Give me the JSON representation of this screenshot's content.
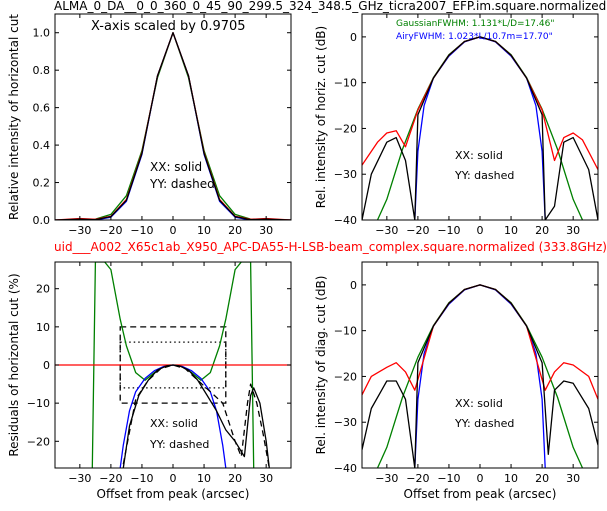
{
  "figure": {
    "suptitle": "ALMA_0_DA__0_0_360_0_45_90_299.5_324_348.5_GHz_ticra2007_EFP.im.square.normalized",
    "subtitle": "uid___A002_X65c1ab_X950_APC-DA55-H-LSB-beam_complex.square.normalized (333.8GHz)",
    "subtitle_color": "#ff0000"
  },
  "chart_data": [
    {
      "id": "p1",
      "type": "line",
      "ylabel": "Relative intensity of horizontal cut",
      "xlabel": "",
      "xlim": [
        -38,
        38
      ],
      "ylim": [
        0,
        1.1
      ],
      "xticks": [
        -30,
        -20,
        -10,
        0,
        10,
        20,
        30
      ],
      "yticks": [
        0.0,
        0.2,
        0.4,
        0.6,
        0.8,
        1.0
      ],
      "ytick_labels": [
        "0.0",
        "0.2",
        "0.4",
        "0.6",
        "0.8",
        "1.0"
      ],
      "annotations": [
        "X-axis scaled by 0.9705",
        "XX: solid",
        "YY: dashed"
      ],
      "series": [
        {
          "color": "#008000",
          "style": "solid",
          "x": [
            -38,
            -30,
            -25,
            -20,
            -15,
            -10,
            -5,
            0,
            5,
            10,
            15,
            20,
            25,
            30,
            38
          ],
          "y": [
            0.0,
            0.0,
            0.005,
            0.03,
            0.13,
            0.37,
            0.76,
            1.0,
            0.76,
            0.37,
            0.13,
            0.03,
            0.005,
            0.0,
            0.0
          ]
        },
        {
          "color": "#0000ff",
          "style": "solid",
          "x": [
            -38,
            -30,
            -25,
            -20,
            -15,
            -10,
            -5,
            0,
            5,
            10,
            15,
            20,
            25,
            30,
            38
          ],
          "y": [
            0.0,
            0.0,
            0.0,
            0.015,
            0.1,
            0.35,
            0.77,
            1.0,
            0.77,
            0.35,
            0.1,
            0.015,
            0.0,
            0.0,
            0.0
          ]
        },
        {
          "color": "#ff0000",
          "style": "solid",
          "x": [
            -38,
            -30,
            -25,
            -20,
            -15,
            -10,
            -5,
            0,
            5,
            10,
            15,
            20,
            25,
            30,
            38
          ],
          "y": [
            0.0,
            0.008,
            0.004,
            0.02,
            0.11,
            0.36,
            0.77,
            1.0,
            0.77,
            0.36,
            0.11,
            0.02,
            0.004,
            0.008,
            0.0
          ]
        },
        {
          "color": "#000000",
          "style": "solid",
          "x": [
            -38,
            -30,
            -25,
            -20,
            -15,
            -10,
            -5,
            0,
            5,
            10,
            15,
            20,
            25,
            30,
            38
          ],
          "y": [
            0.0,
            0.005,
            0.002,
            0.018,
            0.105,
            0.355,
            0.77,
            1.0,
            0.77,
            0.355,
            0.105,
            0.018,
            0.002,
            0.005,
            0.0
          ]
        }
      ]
    },
    {
      "id": "p2",
      "type": "line",
      "ylabel": "Rel. intensity of horiz. cut (dB)",
      "xlabel": "",
      "xlim": [
        -38,
        38
      ],
      "ylim": [
        -40,
        5
      ],
      "xticks": [
        -30,
        -20,
        -10,
        0,
        10,
        20,
        30
      ],
      "yticks": [
        0,
        -10,
        -20,
        -30,
        -40
      ],
      "ytick_labels": [
        "0",
        "−10",
        "−20",
        "−30",
        "−40"
      ],
      "annotations": [
        "XX: solid",
        "YY: dashed"
      ],
      "legend": [
        {
          "text": "GaussianFWHM: 1.131*L/D=17.46\"",
          "color": "#008000"
        },
        {
          "text": "AiryFWHM: 1.023*L/10.7m=17.70\"",
          "color": "#0000ff"
        }
      ],
      "series": [
        {
          "color": "#008000",
          "style": "solid",
          "x": [
            -33,
            -30,
            -25,
            -20,
            -15,
            -10,
            -5,
            0,
            5,
            10,
            15,
            20,
            25,
            30,
            33
          ],
          "y": [
            -40,
            -35.5,
            -24.6,
            -15.8,
            -8.9,
            -3.9,
            -1.0,
            0,
            -1.0,
            -3.9,
            -8.9,
            -15.8,
            -24.6,
            -35.5,
            -40
          ]
        },
        {
          "color": "#0000ff",
          "style": "solid",
          "x": [
            -21,
            -20,
            -18,
            -15,
            -10,
            -5,
            0,
            5,
            10,
            15,
            18,
            20,
            21
          ],
          "y": [
            -40,
            -25,
            -15,
            -9,
            -4.2,
            -1.1,
            0,
            -1.1,
            -4.2,
            -9,
            -15,
            -25,
            -40
          ]
        },
        {
          "color": "#ff0000",
          "style": "solid",
          "x": [
            -38,
            -33,
            -30,
            -27,
            -24,
            -20,
            -15,
            -10,
            -5,
            0,
            5,
            10,
            15,
            20,
            24,
            27,
            30,
            33,
            38
          ],
          "y": [
            -28,
            -23,
            -21,
            -20.5,
            -24,
            -16,
            -9,
            -4,
            -1,
            0,
            -1,
            -4,
            -9,
            -16,
            -27,
            -22,
            -21,
            -22.5,
            -29
          ]
        },
        {
          "color": "#000000",
          "style": "solid",
          "x": [
            -38,
            -35,
            -30,
            -27,
            -24,
            -21,
            -20,
            -15,
            -10,
            -5,
            0,
            5,
            10,
            15,
            20,
            21,
            24,
            27,
            30,
            35,
            38
          ],
          "y": [
            -40,
            -30,
            -23,
            -22,
            -27,
            -40,
            -17,
            -9,
            -4,
            -1,
            0,
            -1,
            -4,
            -9,
            -17,
            -40,
            -37,
            -23,
            -22,
            -29,
            -40
          ]
        }
      ]
    },
    {
      "id": "p3",
      "type": "line",
      "ylabel": "Residuals of horizontal cut (%)",
      "xlabel": "Offset from peak (arcsec)",
      "xlim": [
        -38,
        38
      ],
      "ylim": [
        -27,
        27
      ],
      "xticks": [
        -30,
        -20,
        -10,
        0,
        10,
        20,
        30
      ],
      "yticks": [
        20,
        10,
        0,
        -10,
        -20
      ],
      "ytick_labels": [
        "20",
        "10",
        "0",
        "−10",
        "−20"
      ],
      "annotations": [
        "XX: solid",
        "YY: dashed"
      ],
      "series": [
        {
          "color": "#008000",
          "style": "solid",
          "x": [
            -26,
            -25,
            -22,
            -20,
            -17,
            -15,
            -12,
            -9,
            -6,
            -3,
            0,
            3,
            6,
            9,
            12,
            15,
            17,
            20,
            22,
            25,
            26
          ],
          "y": [
            -27,
            27,
            27,
            25,
            12,
            5,
            -2,
            -4,
            -2,
            -0.4,
            0,
            -0.4,
            -2,
            -4,
            -2,
            5,
            12,
            25,
            27,
            27,
            -27
          ]
        },
        {
          "color": "#0000ff",
          "style": "solid",
          "x": [
            -17,
            -16,
            -14,
            -12,
            -9,
            -6,
            -3,
            0,
            3,
            6,
            9,
            12,
            14,
            16,
            17
          ],
          "y": [
            -27,
            -21,
            -12,
            -7,
            -3.5,
            -1.5,
            -0.4,
            0,
            -0.4,
            -1.5,
            -3.5,
            -7,
            -12,
            -21,
            -27
          ]
        },
        {
          "color": "#ff0000",
          "style": "solid",
          "x": [
            -38,
            38
          ],
          "y": [
            0,
            0
          ]
        },
        {
          "color": "#000000",
          "style": "solid",
          "x": [
            -16,
            -14,
            -11,
            -8,
            -5,
            -2,
            0,
            2,
            5,
            8,
            11,
            14,
            17,
            20,
            23,
            25,
            26,
            28,
            30,
            31
          ],
          "y": [
            -27,
            -16,
            -8,
            -4,
            -1.3,
            -0.2,
            0,
            -0.2,
            -1.3,
            -4,
            -8,
            -12,
            -17,
            -20,
            -24,
            -8,
            -6,
            -10,
            -20,
            -27
          ]
        },
        {
          "color": "#000000",
          "style": "dashed",
          "x": [
            -16,
            -12,
            -8,
            -4,
            0,
            4,
            8,
            12,
            16,
            18,
            20,
            22,
            24,
            25,
            27,
            29,
            31
          ],
          "y": [
            -26,
            -9,
            -4,
            -1,
            0,
            -1,
            -4,
            -7,
            -10,
            -15,
            -20,
            -24,
            -10,
            -5,
            -10,
            -18,
            -27
          ]
        }
      ],
      "boxes": [
        {
          "style": "dashed",
          "x0": -17,
          "x1": 17,
          "y0": -10,
          "y1": 10
        },
        {
          "style": "dotted",
          "x0": -17,
          "x1": 17,
          "y0": -6,
          "y1": 6
        }
      ]
    },
    {
      "id": "p4",
      "type": "line",
      "ylabel": "Rel. intensity of diag. cut (dB)",
      "xlabel": "Offset from peak (arcsec)",
      "xlim": [
        -38,
        38
      ],
      "ylim": [
        -40,
        5
      ],
      "xticks": [
        -30,
        -20,
        -10,
        0,
        10,
        20,
        30
      ],
      "yticks": [
        0,
        -10,
        -20,
        -30,
        -40
      ],
      "ytick_labels": [
        "0",
        "−10",
        "−20",
        "−30",
        "−40"
      ],
      "annotations": [
        "XX: solid",
        "YY: dashed"
      ],
      "series": [
        {
          "color": "#008000",
          "style": "solid",
          "x": [
            -33,
            -30,
            -25,
            -20,
            -15,
            -10,
            -5,
            0,
            5,
            10,
            15,
            20,
            25,
            30,
            33
          ],
          "y": [
            -40,
            -35.5,
            -24.6,
            -15.8,
            -8.9,
            -3.9,
            -1.0,
            0,
            -1.0,
            -3.9,
            -8.9,
            -15.8,
            -24.6,
            -35.5,
            -40
          ]
        },
        {
          "color": "#0000ff",
          "style": "solid",
          "x": [
            -21,
            -20,
            -18,
            -15,
            -10,
            -5,
            0,
            5,
            10,
            15,
            18,
            20,
            21
          ],
          "y": [
            -40,
            -25,
            -15,
            -9,
            -4.2,
            -1.1,
            0,
            -1.1,
            -4.2,
            -9,
            -15,
            -25,
            -40
          ]
        },
        {
          "color": "#ff0000",
          "style": "solid",
          "x": [
            -38,
            -35,
            -30,
            -27,
            -24,
            -21,
            -15,
            -10,
            -5,
            0,
            5,
            10,
            15,
            21,
            24,
            27,
            30,
            35,
            38
          ],
          "y": [
            -24,
            -20,
            -18,
            -17,
            -19,
            -23,
            -9,
            -4,
            -1,
            0,
            -1,
            -4,
            -9,
            -23,
            -19,
            -17,
            -17.5,
            -20,
            -25
          ]
        },
        {
          "color": "#000000",
          "style": "solid",
          "x": [
            -38,
            -35,
            -30,
            -27,
            -24,
            -21,
            -20,
            -15,
            -10,
            -5,
            0,
            5,
            10,
            15,
            20,
            22,
            24,
            27,
            30,
            35,
            38
          ],
          "y": [
            -36,
            -27,
            -21,
            -21,
            -25,
            -40,
            -17,
            -9,
            -4,
            -1,
            0,
            -1,
            -4,
            -9,
            -17,
            -37,
            -23,
            -21,
            -21.5,
            -27,
            -35
          ]
        }
      ]
    }
  ]
}
